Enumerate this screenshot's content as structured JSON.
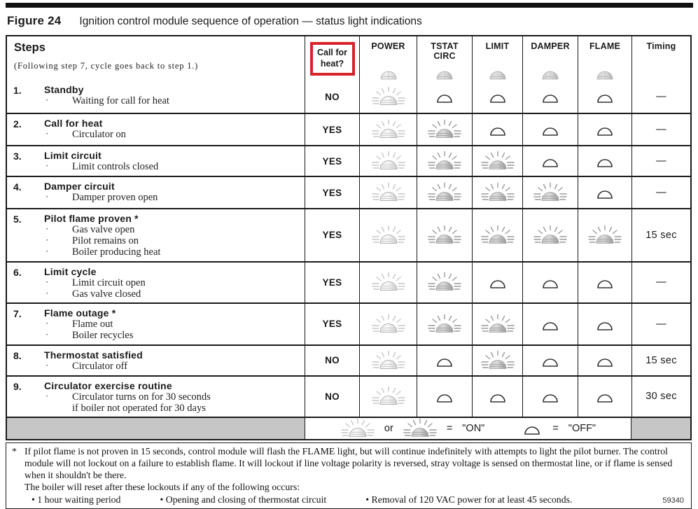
{
  "figure": {
    "label": "Figure 24",
    "caption": "Ignition control module sequence of operation — status light indications"
  },
  "colors": {
    "accent_red": "#d8232a",
    "legend_gray": "#c6c6c6"
  },
  "table": {
    "header": {
      "steps_label": "Steps",
      "steps_note": "(Following step 7, cycle goes back to step 1.)",
      "call_label": "Call for heat?",
      "columns": [
        {
          "label": "POWER",
          "icon": "lamp-header-light"
        },
        {
          "label": "TSTAT\nCIRC",
          "icon": "lamp-header-dark"
        },
        {
          "label": "LIMIT",
          "icon": "lamp-header-dark"
        },
        {
          "label": "DAMPER",
          "icon": "lamp-header-dark"
        },
        {
          "label": "FLAME",
          "icon": "lamp-header-dark"
        }
      ],
      "timing_label": "Timing"
    },
    "rows": [
      {
        "num": "1.",
        "title": "Standby",
        "lines": [
          {
            "bullet": "·",
            "text": "Waiting for call for heat"
          }
        ],
        "call": "NO",
        "lights": {
          "power": "on-light",
          "tstat": "off",
          "limit": "off",
          "damper": "off",
          "flame": "off"
        },
        "timing": "—"
      },
      {
        "num": "2.",
        "title": "Call for heat",
        "lines": [
          {
            "bullet": "·",
            "text": "Circulator on"
          }
        ],
        "call": "YES",
        "lights": {
          "power": "on-light",
          "tstat": "on-dark",
          "limit": "off",
          "damper": "off",
          "flame": "off"
        },
        "timing": "—"
      },
      {
        "num": "3.",
        "title": "Limit circuit",
        "lines": [
          {
            "bullet": "·",
            "text": "Limit controls closed"
          }
        ],
        "call": "YES",
        "lights": {
          "power": "on-light",
          "tstat": "on-dark",
          "limit": "on-dark",
          "damper": "off",
          "flame": "off"
        },
        "timing": "—"
      },
      {
        "num": "4.",
        "title": "Damper circuit",
        "lines": [
          {
            "bullet": "·",
            "text": "Damper proven open"
          }
        ],
        "call": "YES",
        "lights": {
          "power": "on-light",
          "tstat": "on-dark",
          "limit": "on-dark",
          "damper": "on-dark",
          "flame": "off"
        },
        "timing": "—"
      },
      {
        "num": "5.",
        "title": "Pilot flame proven *",
        "lines": [
          {
            "bullet": "·",
            "text": "Gas valve open"
          },
          {
            "bullet": "·",
            "text": "Pilot remains on"
          },
          {
            "bullet": "·",
            "text": "Boiler producing heat"
          }
        ],
        "call": "YES",
        "lights": {
          "power": "on-light",
          "tstat": "on-dark",
          "limit": "on-dark",
          "damper": "on-dark",
          "flame": "on-dark"
        },
        "timing": "15 sec"
      },
      {
        "num": "6.",
        "title": "Limit cycle",
        "lines": [
          {
            "bullet": "·",
            "text": "Limit circuit open"
          },
          {
            "bullet": "·",
            "text": "Gas valve closed"
          }
        ],
        "call": "YES",
        "lights": {
          "power": "on-light",
          "tstat": "on-dark",
          "limit": "off",
          "damper": "off",
          "flame": "off"
        },
        "timing": "—"
      },
      {
        "num": "7.",
        "title": "Flame outage *",
        "lines": [
          {
            "bullet": "·",
            "text": "Flame out"
          },
          {
            "bullet": "·",
            "text": "Boiler recycles"
          }
        ],
        "call": "YES",
        "lights": {
          "power": "on-light",
          "tstat": "on-dark",
          "limit": "on-dark",
          "damper": "off",
          "flame": "off"
        },
        "timing": "—"
      },
      {
        "num": "8.",
        "title": "Thermostat satisfied",
        "lines": [
          {
            "bullet": "·",
            "text": "Circulator off"
          }
        ],
        "call": "NO",
        "lights": {
          "power": "on-light",
          "tstat": "off",
          "limit": "on-dark",
          "damper": "off",
          "flame": "off"
        },
        "timing": "15 sec"
      },
      {
        "num": "9.",
        "title": "Circulator exercise routine",
        "lines": [
          {
            "bullet": "·",
            "text": "Circulator turns on for 30 seconds"
          },
          {
            "bullet": "",
            "text": "if boiler not operated for 30 days"
          }
        ],
        "call": "NO",
        "lights": {
          "power": "on-light",
          "tstat": "off",
          "limit": "off",
          "damper": "off",
          "flame": "off"
        },
        "timing": "30 sec"
      }
    ]
  },
  "legend": {
    "lamp_a": "on-light",
    "or_label": "or",
    "lamp_b": "on-dark",
    "eq_on": "=",
    "on_label": "\"ON\"",
    "lamp_off": "off",
    "eq_off": "=",
    "off_label": "\"OFF\""
  },
  "footnote": {
    "star": "*",
    "paragraph": "If pilot flame is not proven in 15 seconds, control module will flash the FLAME light, but will continue indefinitely with attempts to light the pilot burner. The control module will not lockout on a failure to establish flame. It will lockout if line voltage polarity is reversed, stray voltage is sensed on thermostat line, or if flame is sensed when it shouldn't be there.",
    "reset_line": "The boiler will reset after these lockouts if any of the following occurs:",
    "bullets": [
      "•  1 hour waiting period",
      "•  Opening and closing of thermostat circuit",
      "•  Removal of 120 VAC power for at least 45 seconds."
    ],
    "doc_number": "59340"
  }
}
